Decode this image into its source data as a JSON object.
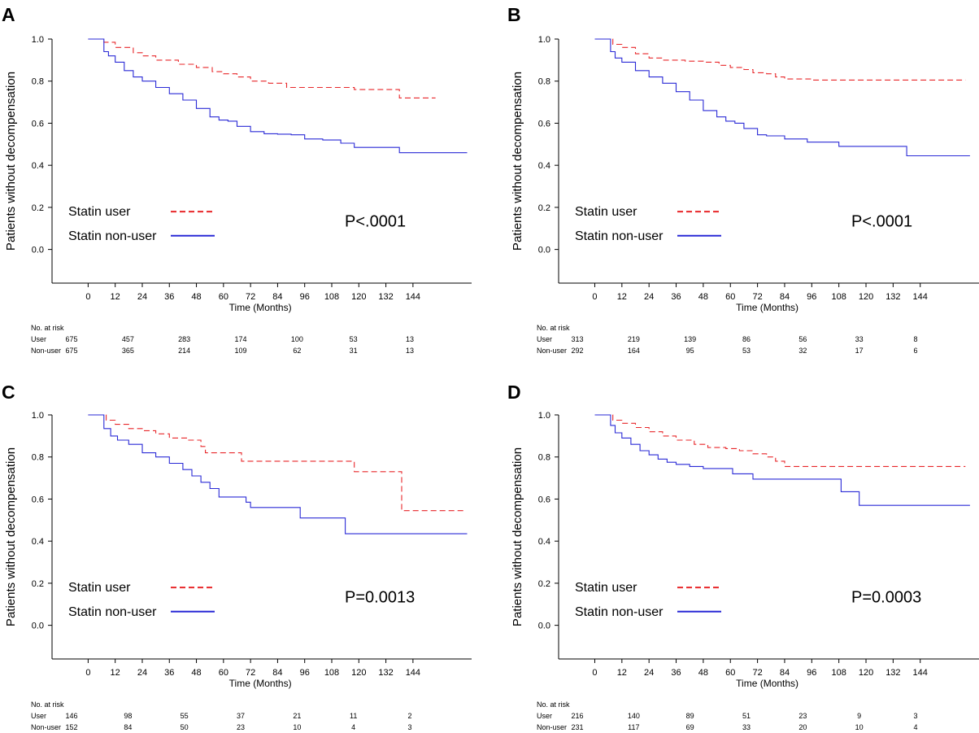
{
  "time_axis_label": "Time (Months)",
  "risk_table_header": "No. at risk",
  "chart_data": [
    {
      "panel_label": "A",
      "type": "line",
      "step": true,
      "ylabel": "Patients without decompensation",
      "xlabel": "Time (Months)",
      "xlim": [
        -16,
        170
      ],
      "ylim": [
        -0.16,
        1.0
      ],
      "xticks": [
        0,
        12,
        24,
        36,
        48,
        60,
        72,
        84,
        96,
        108,
        120,
        132,
        144
      ],
      "yticks": [
        "0.0",
        "0.2",
        "0.4",
        "0.6",
        "0.8",
        "1.0"
      ],
      "p_value": "P<.0001",
      "series": [
        {
          "name": "Statin user",
          "color": "#e8272a",
          "dash": true,
          "points": [
            [
              0,
              1.0
            ],
            [
              5,
              1.0
            ],
            [
              7,
              0.985
            ],
            [
              12,
              0.96
            ],
            [
              20,
              0.935
            ],
            [
              24,
              0.92
            ],
            [
              30,
              0.9
            ],
            [
              40,
              0.88
            ],
            [
              48,
              0.865
            ],
            [
              55,
              0.845
            ],
            [
              60,
              0.835
            ],
            [
              66,
              0.82
            ],
            [
              72,
              0.8
            ],
            [
              80,
              0.79
            ],
            [
              88,
              0.77
            ],
            [
              96,
              0.77
            ],
            [
              114,
              0.77
            ],
            [
              118,
              0.76
            ],
            [
              136,
              0.76
            ],
            [
              138,
              0.72
            ],
            [
              154,
              0.72
            ]
          ]
        },
        {
          "name": "Statin non-user",
          "color": "#2a2ad6",
          "dash": false,
          "points": [
            [
              0,
              1.0
            ],
            [
              6,
              1.0
            ],
            [
              7,
              0.94
            ],
            [
              9,
              0.92
            ],
            [
              12,
              0.89
            ],
            [
              16,
              0.85
            ],
            [
              20,
              0.82
            ],
            [
              24,
              0.8
            ],
            [
              30,
              0.77
            ],
            [
              36,
              0.74
            ],
            [
              42,
              0.71
            ],
            [
              48,
              0.67
            ],
            [
              54,
              0.63
            ],
            [
              58,
              0.615
            ],
            [
              62,
              0.61
            ],
            [
              66,
              0.585
            ],
            [
              72,
              0.56
            ],
            [
              78,
              0.55
            ],
            [
              84,
              0.548
            ],
            [
              90,
              0.545
            ],
            [
              96,
              0.525
            ],
            [
              104,
              0.52
            ],
            [
              112,
              0.505
            ],
            [
              118,
              0.485
            ],
            [
              128,
              0.485
            ],
            [
              137,
              0.485
            ],
            [
              138,
              0.46
            ],
            [
              168,
              0.46
            ]
          ]
        }
      ],
      "risk_table": {
        "rows": [
          {
            "label": "User",
            "values": [
              "675",
              "457",
              "283",
              "174",
              "100",
              "53",
              "13"
            ]
          },
          {
            "label": "Non-user",
            "values": [
              "675",
              "365",
              "214",
              "109",
              "62",
              "31",
              "13"
            ]
          }
        ]
      }
    },
    {
      "panel_label": "B",
      "type": "line",
      "step": true,
      "ylabel": "Patients without decompensation",
      "xlabel": "Time (Months)",
      "xlim": [
        -16,
        170
      ],
      "ylim": [
        -0.16,
        1.0
      ],
      "xticks": [
        0,
        12,
        24,
        36,
        48,
        60,
        72,
        84,
        96,
        108,
        120,
        132,
        144
      ],
      "yticks": [
        "0.0",
        "0.2",
        "0.4",
        "0.6",
        "0.8",
        "1.0"
      ],
      "p_value": "P<.0001",
      "series": [
        {
          "name": "Statin user",
          "color": "#e8272a",
          "dash": true,
          "points": [
            [
              0,
              1.0
            ],
            [
              6,
              1.0
            ],
            [
              8,
              0.975
            ],
            [
              12,
              0.96
            ],
            [
              18,
              0.93
            ],
            [
              24,
              0.91
            ],
            [
              30,
              0.9
            ],
            [
              40,
              0.895
            ],
            [
              48,
              0.89
            ],
            [
              55,
              0.875
            ],
            [
              60,
              0.865
            ],
            [
              66,
              0.855
            ],
            [
              70,
              0.84
            ],
            [
              76,
              0.835
            ],
            [
              80,
              0.82
            ],
            [
              84,
              0.81
            ],
            [
              96,
              0.805
            ],
            [
              164,
              0.805
            ]
          ]
        },
        {
          "name": "Statin non-user",
          "color": "#2a2ad6",
          "dash": false,
          "points": [
            [
              0,
              1.0
            ],
            [
              6,
              1.0
            ],
            [
              7,
              0.94
            ],
            [
              9,
              0.91
            ],
            [
              12,
              0.89
            ],
            [
              18,
              0.85
            ],
            [
              24,
              0.82
            ],
            [
              30,
              0.79
            ],
            [
              36,
              0.75
            ],
            [
              42,
              0.71
            ],
            [
              48,
              0.66
            ],
            [
              54,
              0.63
            ],
            [
              58,
              0.61
            ],
            [
              62,
              0.6
            ],
            [
              66,
              0.575
            ],
            [
              72,
              0.545
            ],
            [
              76,
              0.54
            ],
            [
              84,
              0.525
            ],
            [
              94,
              0.51
            ],
            [
              108,
              0.49
            ],
            [
              126,
              0.49
            ],
            [
              137,
              0.49
            ],
            [
              138,
              0.445
            ],
            [
              166,
              0.445
            ]
          ]
        }
      ],
      "risk_table": {
        "rows": [
          {
            "label": "User",
            "values": [
              "313",
              "219",
              "139",
              "86",
              "56",
              "33",
              "8"
            ]
          },
          {
            "label": "Non-user",
            "values": [
              "292",
              "164",
              "95",
              "53",
              "32",
              "17",
              "6"
            ]
          }
        ]
      }
    },
    {
      "panel_label": "C",
      "type": "line",
      "step": true,
      "ylabel": "Patients without decompensation",
      "xlabel": "Time (Months)",
      "xlim": [
        -16,
        170
      ],
      "ylim": [
        -0.16,
        1.0
      ],
      "xticks": [
        0,
        12,
        24,
        36,
        48,
        60,
        72,
        84,
        96,
        108,
        120,
        132,
        144
      ],
      "yticks": [
        "0.0",
        "0.2",
        "0.4",
        "0.6",
        "0.8",
        "1.0"
      ],
      "p_value": "P=0.0013",
      "series": [
        {
          "name": "Statin user",
          "color": "#e8272a",
          "dash": true,
          "points": [
            [
              0,
              1.0
            ],
            [
              6,
              1.0
            ],
            [
              8,
              0.975
            ],
            [
              12,
              0.955
            ],
            [
              18,
              0.935
            ],
            [
              24,
              0.925
            ],
            [
              30,
              0.91
            ],
            [
              36,
              0.89
            ],
            [
              44,
              0.88
            ],
            [
              50,
              0.85
            ],
            [
              52,
              0.82
            ],
            [
              64,
              0.82
            ],
            [
              68,
              0.78
            ],
            [
              116,
              0.78
            ],
            [
              118,
              0.73
            ],
            [
              138,
              0.73
            ],
            [
              139,
              0.545
            ],
            [
              167,
              0.545
            ]
          ]
        },
        {
          "name": "Statin non-user",
          "color": "#2a2ad6",
          "dash": false,
          "points": [
            [
              0,
              1.0
            ],
            [
              6,
              1.0
            ],
            [
              7,
              0.935
            ],
            [
              10,
              0.9
            ],
            [
              13,
              0.88
            ],
            [
              18,
              0.86
            ],
            [
              24,
              0.82
            ],
            [
              30,
              0.8
            ],
            [
              36,
              0.77
            ],
            [
              42,
              0.74
            ],
            [
              46,
              0.71
            ],
            [
              50,
              0.68
            ],
            [
              54,
              0.65
            ],
            [
              58,
              0.61
            ],
            [
              64,
              0.61
            ],
            [
              70,
              0.585
            ],
            [
              72,
              0.56
            ],
            [
              93,
              0.56
            ],
            [
              94,
              0.51
            ],
            [
              113,
              0.51
            ],
            [
              114,
              0.435
            ],
            [
              168,
              0.435
            ]
          ]
        }
      ],
      "risk_table": {
        "rows": [
          {
            "label": "User",
            "values": [
              "146",
              "98",
              "55",
              "37",
              "21",
              "11",
              "2"
            ]
          },
          {
            "label": "Non-user",
            "values": [
              "152",
              "84",
              "50",
              "23",
              "10",
              "4",
              "3"
            ]
          }
        ]
      }
    },
    {
      "panel_label": "D",
      "type": "line",
      "step": true,
      "ylabel": "Patients without decompensation",
      "xlabel": "Time (Months)",
      "xlim": [
        -16,
        170
      ],
      "ylim": [
        -0.16,
        1.0
      ],
      "xticks": [
        0,
        12,
        24,
        36,
        48,
        60,
        72,
        84,
        96,
        108,
        120,
        132,
        144
      ],
      "yticks": [
        "0.0",
        "0.2",
        "0.4",
        "0.6",
        "0.8",
        "1.0"
      ],
      "p_value": "P=0.0003",
      "series": [
        {
          "name": "Statin user",
          "color": "#e8272a",
          "dash": true,
          "points": [
            [
              0,
              1.0
            ],
            [
              6,
              1.0
            ],
            [
              8,
              0.975
            ],
            [
              12,
              0.96
            ],
            [
              18,
              0.94
            ],
            [
              24,
              0.92
            ],
            [
              30,
              0.9
            ],
            [
              36,
              0.88
            ],
            [
              44,
              0.86
            ],
            [
              50,
              0.845
            ],
            [
              58,
              0.84
            ],
            [
              64,
              0.83
            ],
            [
              70,
              0.815
            ],
            [
              76,
              0.8
            ],
            [
              80,
              0.78
            ],
            [
              84,
              0.755
            ],
            [
              96,
              0.755
            ],
            [
              164,
              0.755
            ]
          ]
        },
        {
          "name": "Statin non-user",
          "color": "#2a2ad6",
          "dash": false,
          "points": [
            [
              0,
              1.0
            ],
            [
              6,
              1.0
            ],
            [
              7,
              0.95
            ],
            [
              9,
              0.915
            ],
            [
              12,
              0.89
            ],
            [
              16,
              0.86
            ],
            [
              20,
              0.83
            ],
            [
              24,
              0.81
            ],
            [
              28,
              0.79
            ],
            [
              32,
              0.775
            ],
            [
              36,
              0.765
            ],
            [
              42,
              0.755
            ],
            [
              48,
              0.745
            ],
            [
              60,
              0.745
            ],
            [
              61,
              0.72
            ],
            [
              68,
              0.72
            ],
            [
              70,
              0.695
            ],
            [
              108,
              0.695
            ],
            [
              109,
              0.635
            ],
            [
              116,
              0.635
            ],
            [
              117,
              0.57
            ],
            [
              166,
              0.57
            ]
          ]
        }
      ],
      "risk_table": {
        "rows": [
          {
            "label": "User",
            "values": [
              "216",
              "140",
              "89",
              "51",
              "23",
              "9",
              "3"
            ]
          },
          {
            "label": "Non-user",
            "values": [
              "231",
              "117",
              "69",
              "33",
              "20",
              "10",
              "4"
            ]
          }
        ]
      }
    }
  ]
}
